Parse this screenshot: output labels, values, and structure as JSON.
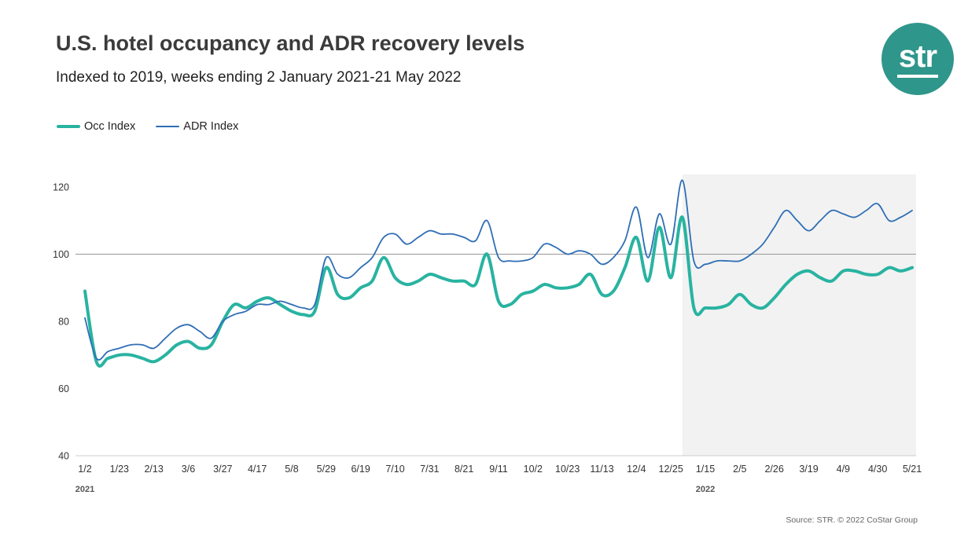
{
  "header": {
    "title": "U.S. hotel occupancy and ADR recovery levels",
    "subtitle": "Indexed to 2019, weeks ending 2 January 2021-21 May 2022"
  },
  "logo": {
    "text": "str",
    "bg_color": "#2F968B"
  },
  "legend": {
    "occ_label": "Occ Index",
    "adr_label": "ADR Index"
  },
  "footer": {
    "source": "Source: STR. © 2022 CoStar Group"
  },
  "chart_data": {
    "type": "line",
    "title": "U.S. hotel occupancy and ADR recovery levels",
    "subtitle": "Indexed to 2019, weeks ending 2 January 2021-21 May 2022",
    "ylim": [
      40,
      120
    ],
    "yticks": [
      40,
      60,
      80,
      100,
      120
    ],
    "reference_line": 100,
    "tick_every": 3,
    "grid": "off",
    "legend_position": "top-left",
    "x_weeks": [
      "1/2",
      "1/9",
      "1/16",
      "1/23",
      "1/30",
      "2/6",
      "2/13",
      "2/20",
      "2/27",
      "3/6",
      "3/13",
      "3/20",
      "3/27",
      "4/3",
      "4/10",
      "4/17",
      "4/24",
      "5/1",
      "5/8",
      "5/15",
      "5/22",
      "5/29",
      "6/5",
      "6/12",
      "6/19",
      "6/26",
      "7/3",
      "7/10",
      "7/17",
      "7/24",
      "7/31",
      "8/7",
      "8/14",
      "8/21",
      "8/28",
      "9/4",
      "9/11",
      "9/18",
      "9/25",
      "10/2",
      "10/9",
      "10/16",
      "10/23",
      "10/30",
      "11/6",
      "11/13",
      "11/20",
      "11/27",
      "12/4",
      "12/11",
      "12/18",
      "12/25",
      "1/1",
      "1/8",
      "1/15",
      "1/22",
      "1/29",
      "2/5",
      "2/12",
      "2/19",
      "2/26",
      "3/5",
      "3/12",
      "3/19",
      "3/26",
      "4/2",
      "4/9",
      "4/16",
      "4/23",
      "4/30",
      "5/7",
      "5/14",
      "5/21"
    ],
    "year_labels": [
      {
        "label": "2021",
        "index": 0
      },
      {
        "label": "2022",
        "index": 54
      }
    ],
    "shaded_region": {
      "start_index": 52,
      "end_index": 72,
      "color": "#F2F2F2"
    },
    "series": [
      {
        "name": "Occ Index",
        "color": "#29B3A1",
        "width": 4,
        "values": [
          89,
          68,
          69,
          70,
          70,
          69,
          68,
          70,
          73,
          74,
          72,
          73,
          80,
          85,
          84,
          86,
          87,
          85,
          83,
          82,
          83,
          96,
          88,
          87,
          90,
          92,
          99,
          93,
          91,
          92,
          94,
          93,
          92,
          92,
          91,
          100,
          86,
          85,
          88,
          89,
          91,
          90,
          90,
          91,
          94,
          88,
          89,
          96,
          105,
          92,
          108,
          93,
          111,
          84,
          84,
          84,
          85,
          88,
          85,
          84,
          87,
          91,
          94,
          95,
          93,
          92,
          95,
          95,
          94,
          94,
          96,
          95,
          96
        ]
      },
      {
        "name": "ADR Index",
        "color": "#2F6EB5",
        "width": 1.8,
        "values": [
          81,
          69,
          71,
          72,
          73,
          73,
          72,
          75,
          78,
          79,
          77,
          75,
          80,
          82,
          83,
          85,
          85,
          86,
          85,
          84,
          85,
          99,
          94,
          93,
          96,
          99,
          105,
          106,
          103,
          105,
          107,
          106,
          106,
          105,
          104,
          110,
          99,
          98,
          98,
          99,
          103,
          102,
          100,
          101,
          100,
          97,
          99,
          104,
          114,
          99,
          112,
          103,
          122,
          98,
          97,
          98,
          98,
          98,
          100,
          103,
          108,
          113,
          110,
          107,
          110,
          113,
          112,
          111,
          113,
          115,
          110,
          111,
          113
        ]
      }
    ]
  }
}
